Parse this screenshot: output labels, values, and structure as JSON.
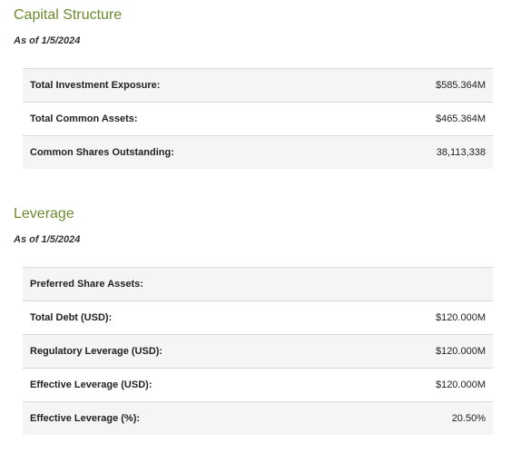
{
  "capital_structure": {
    "title": "Capital Structure",
    "as_of": "As of 1/5/2024",
    "rows": [
      {
        "label": "Total Investment Exposure:",
        "value": "$585.364M"
      },
      {
        "label": "Total Common Assets:",
        "value": "$465.364M"
      },
      {
        "label": "Common Shares Outstanding:",
        "value": "38,113,338"
      }
    ]
  },
  "leverage": {
    "title": "Leverage",
    "as_of": "As of 1/5/2024",
    "rows": [
      {
        "label": "Preferred Share Assets:",
        "value": ""
      },
      {
        "label": "Total Debt (USD):",
        "value": "$120.000M"
      },
      {
        "label": "Regulatory Leverage (USD):",
        "value": "$120.000M"
      },
      {
        "label": "Effective Leverage (USD):",
        "value": "$120.000M"
      },
      {
        "label": "Effective Leverage (%):",
        "value": "20.50%"
      }
    ]
  },
  "colors": {
    "title_green": "#6d8a2e",
    "row_shade": "#f5f5f5",
    "divider": "#d8d8d8"
  }
}
